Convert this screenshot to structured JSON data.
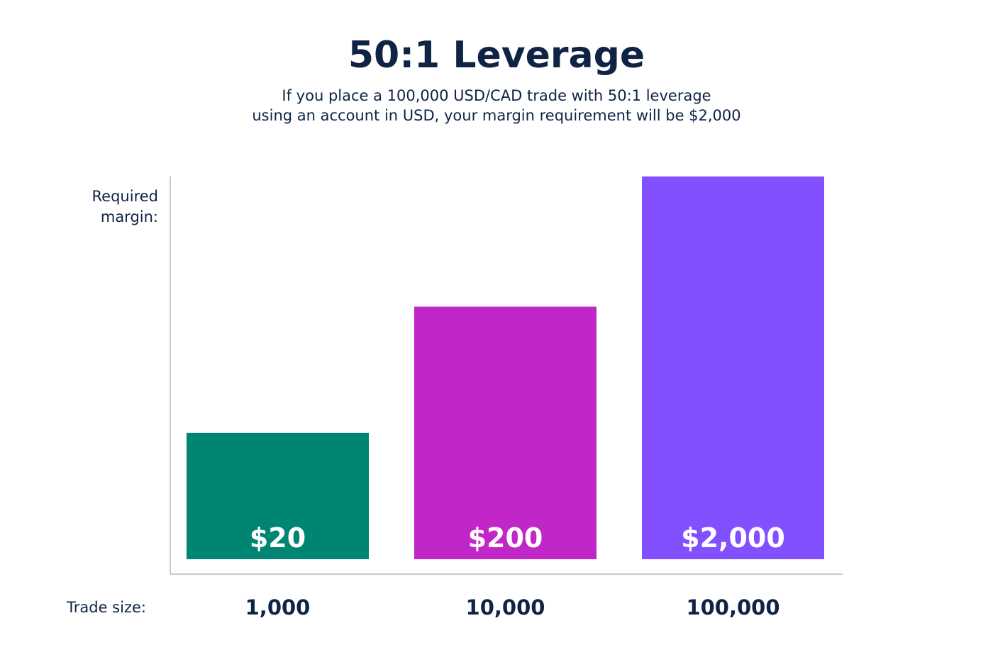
{
  "chart_data": {
    "type": "bar",
    "title": "50:1 Leverage",
    "subtitle_lines": [
      "If you place a 100,000 USD/CAD trade with 50:1 leverage",
      "using an account in USD, your margin requirement will be $2,000"
    ],
    "ylabel_lines": [
      "Required",
      "margin:"
    ],
    "xlabel": "Trade size:",
    "categories": [
      "1,000",
      "10,000",
      "100,000"
    ],
    "value_labels": [
      "$20",
      "$200",
      "$2,000"
    ],
    "bar_fraction_of_full_height": [
      0.33,
      0.66,
      1.0
    ],
    "values": [
      20,
      200,
      2000
    ],
    "colors": [
      "#008573",
      "#c026c8",
      "#8250ff"
    ],
    "text_color": "#0f2345",
    "axis_color": "#bbbbbb",
    "grid": false,
    "legend": "none"
  }
}
